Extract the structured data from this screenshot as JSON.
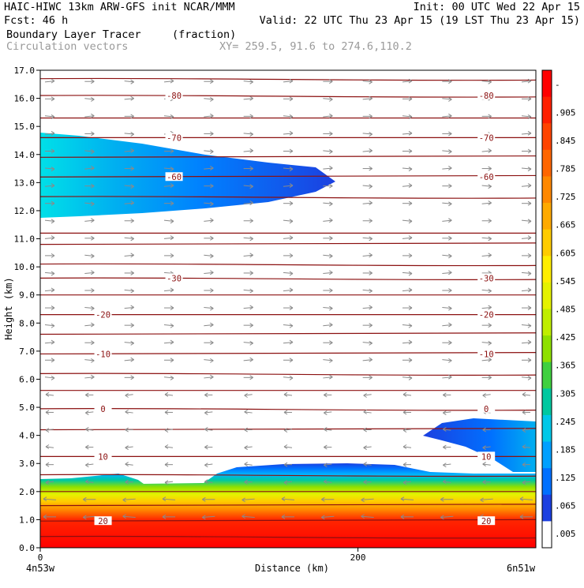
{
  "header": {
    "title_left": "HAIC-HIWC 13km ARW-GFS init   NCAR/MMM",
    "init": "Init: 00 UTC Wed 22 Apr 15",
    "fcst": "Fcst:   46 h",
    "valid": "Valid: 22 UTC Thu 23 Apr 15 (19 LST Thu 23 Apr 15)",
    "field_name": "Boundary Layer Tracer",
    "field_units": "(fraction)",
    "vector_name": "Circulation vectors",
    "xy": "XY= 259.5, 91.6 to 274.6,110.2"
  },
  "chart_data": {
    "type": "heatmap",
    "title": "Boundary Layer Tracer",
    "xlabel": "Distance (km)",
    "ylabel": "Height (km)",
    "xlim": [
      0,
      312
    ],
    "ylim": [
      0,
      17
    ],
    "x_ticks": [
      {
        "value": 0,
        "label": "0"
      },
      {
        "value": 200,
        "label": "200"
      }
    ],
    "x_endpoint_labels": {
      "left": "4n53w",
      "right": "6n51w"
    },
    "y_ticks": [
      0,
      1,
      2,
      3,
      4,
      5,
      6,
      7,
      8,
      9,
      10,
      11,
      12,
      13,
      14,
      15,
      16,
      17
    ],
    "y_tick_labels": [
      "0.0",
      "1.0",
      "2.0",
      "3.0",
      "4.0",
      "5.0",
      "6.0",
      "7.0",
      "8.0",
      "9.0",
      "10.0",
      "11.0",
      "12.0",
      "13.0",
      "14.0",
      "15.0",
      "16.0",
      "17.0"
    ],
    "colorbar": {
      "labels": [
        "-",
        ".905",
        ".845",
        ".785",
        ".725",
        ".665",
        ".605",
        ".545",
        ".485",
        ".425",
        ".365",
        ".305",
        ".245",
        ".185",
        ".125",
        ".065",
        ".005"
      ],
      "colors": [
        "#ff0000",
        "#ff2000",
        "#ff4400",
        "#ff6600",
        "#ff8800",
        "#ffaa00",
        "#ffcc00",
        "#ffee00",
        "#e5f200",
        "#bfee00",
        "#8ee000",
        "#40d040",
        "#00c8a0",
        "#00c8e8",
        "#00a0ff",
        "#0070ff",
        "#1c40e0",
        "#ffffff"
      ]
    },
    "temperature_contours": [
      {
        "label": "-80",
        "h": 16.1
      },
      {
        "label": "-70",
        "h": 14.6
      },
      {
        "label": "-60",
        "h": 13.2
      },
      {
        "label": "-30",
        "h": 9.6
      },
      {
        "label": "-20",
        "h": 8.3
      },
      {
        "label": "-10",
        "h": 6.9
      },
      {
        "label": "0",
        "h": 4.95
      },
      {
        "label": "10",
        "h": 3.25
      },
      {
        "label": "20",
        "h": 0.95
      }
    ],
    "extra_isotherms_km": [
      16.7,
      15.3,
      13.9,
      12.5,
      11.2,
      10.8,
      10.1,
      9.0,
      7.6,
      6.2,
      5.6,
      4.2,
      2.6,
      2.0,
      1.5,
      0.4
    ]
  }
}
